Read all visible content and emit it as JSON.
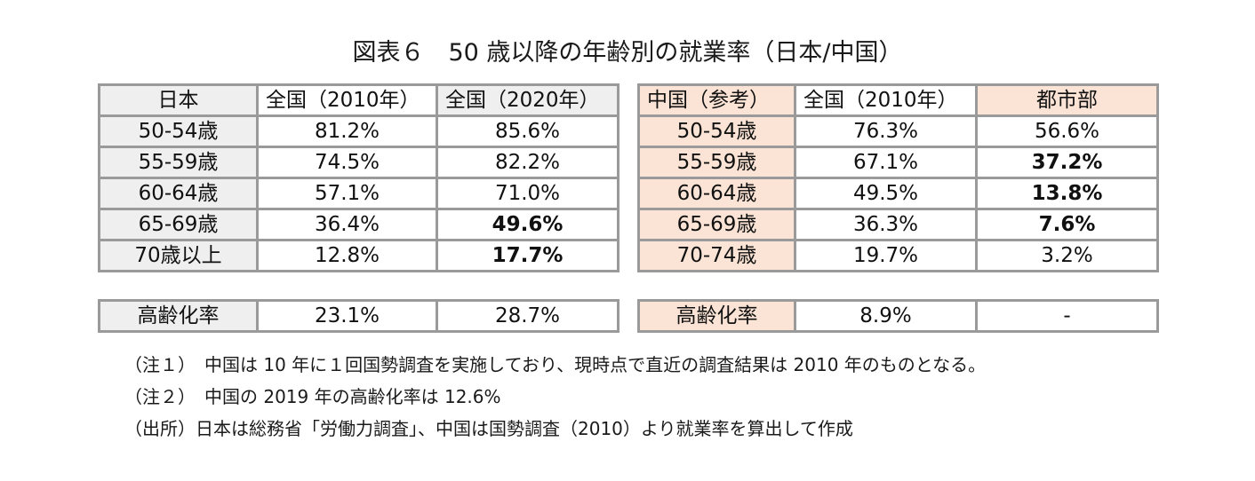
{
  "title": "図表６　50 歳以降の年齢別の就業率（日本/中国）",
  "japan": {
    "headers": [
      "日本",
      "全国（2010年）",
      "全国（2020年）"
    ],
    "rows": [
      {
        "label": "50-54歳",
        "v2010": "81.2%",
        "v2020": "85.6%"
      },
      {
        "label": "55-59歳",
        "v2010": "74.5%",
        "v2020": "82.2%"
      },
      {
        "label": "60-64歳",
        "v2010": "57.1%",
        "v2020": "71.0%"
      },
      {
        "label": "65-69歳",
        "v2010": "36.4%",
        "v2020": "49.6%"
      },
      {
        "label": "70歳以上",
        "v2010": "12.8%",
        "v2020": "17.7%"
      }
    ],
    "aging": {
      "label": "高齢化率",
      "v2010": "23.1%",
      "v2020": "28.7%"
    }
  },
  "china": {
    "headers": [
      "中国（参考）",
      "全国（2010年）",
      "都市部"
    ],
    "rows": [
      {
        "label": "50-54歳",
        "national": "76.3%",
        "urban": "56.6%"
      },
      {
        "label": "55-59歳",
        "national": "67.1%",
        "urban": "37.2%"
      },
      {
        "label": "60-64歳",
        "national": "49.5%",
        "urban": "13.8%"
      },
      {
        "label": "65-69歳",
        "national": "36.3%",
        "urban": "7.6%"
      },
      {
        "label": "70-74歳",
        "national": "19.7%",
        "urban": "3.2%"
      }
    ],
    "aging": {
      "label": "高齢化率",
      "national": "8.9%",
      "urban": "-"
    }
  },
  "notes": [
    "（注１）　中国は 10 年に１回国勢調査を実施しており、現時点で直近の調査結果は 2010 年のものとなる。",
    "（注２）　中国の 2019 年の高齢化率は 12.6%",
    "（出所）日本は総務省「労働力調査」、中国は国勢調査（2010）より就業率を算出して作成"
  ],
  "colors": {
    "japan_header_bg": "#efefef",
    "china_header_bg": "#fbe4d5",
    "border": "#9a9a9a"
  }
}
